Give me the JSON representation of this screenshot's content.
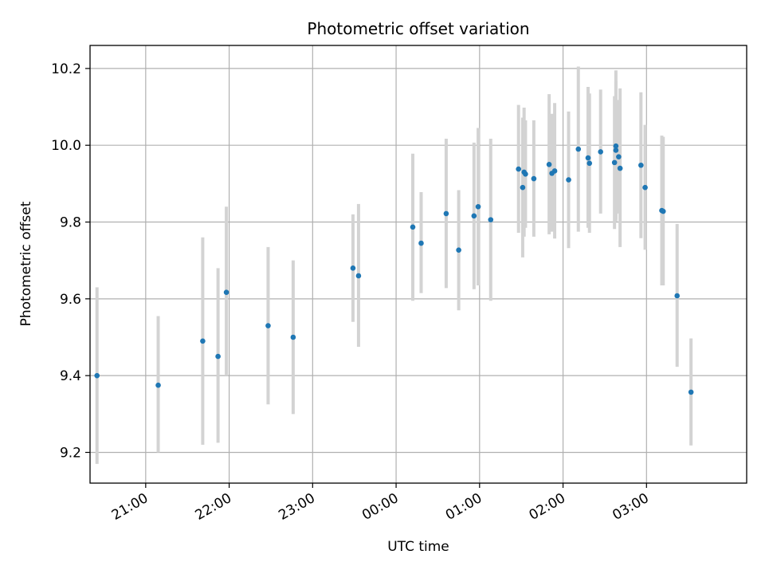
{
  "chart_data": {
    "type": "scatter",
    "title": "Photometric offset variation",
    "xlabel": "UTC time",
    "ylabel": "Photometric offset",
    "x_domain": [
      "20:20",
      "04:12"
    ],
    "ylim": [
      9.12,
      10.26
    ],
    "grid": true,
    "x_ticks": [
      "21:00",
      "22:00",
      "23:00",
      "00:00",
      "01:00",
      "02:00",
      "03:00"
    ],
    "y_ticks": [
      "9.2",
      "9.4",
      "9.6",
      "9.8",
      "10.0",
      "10.2"
    ],
    "colors": {
      "point": "#1f77b4",
      "errorbar": "#d3d3d3",
      "grid": "#b0b0b0"
    },
    "series": [
      {
        "points": [
          {
            "x": "20:25",
            "y": 9.4,
            "ylo": 9.17,
            "yhi": 9.63
          },
          {
            "x": "21:09",
            "y": 9.375,
            "ylo": 9.2,
            "yhi": 9.555
          },
          {
            "x": "21:41",
            "y": 9.49,
            "ylo": 9.22,
            "yhi": 9.76
          },
          {
            "x": "21:52",
            "y": 9.45,
            "ylo": 9.225,
            "yhi": 9.68
          },
          {
            "x": "21:58",
            "y": 9.617,
            "ylo": 9.4,
            "yhi": 9.84
          },
          {
            "x": "22:28",
            "y": 9.53,
            "ylo": 9.325,
            "yhi": 9.735
          },
          {
            "x": "22:46",
            "y": 9.5,
            "ylo": 9.3,
            "yhi": 9.7
          },
          {
            "x": "23:29",
            "y": 9.68,
            "ylo": 9.54,
            "yhi": 9.82
          },
          {
            "x": "23:33",
            "y": 9.66,
            "ylo": 9.475,
            "yhi": 9.847
          },
          {
            "x": "00:12",
            "y": 9.787,
            "ylo": 9.595,
            "yhi": 9.978
          },
          {
            "x": "00:18",
            "y": 9.745,
            "ylo": 9.615,
            "yhi": 9.878
          },
          {
            "x": "00:36",
            "y": 9.822,
            "ylo": 9.628,
            "yhi": 10.017
          },
          {
            "x": "00:45",
            "y": 9.727,
            "ylo": 9.57,
            "yhi": 9.883
          },
          {
            "x": "00:56",
            "y": 9.816,
            "ylo": 9.625,
            "yhi": 10.007
          },
          {
            "x": "00:59",
            "y": 9.84,
            "ylo": 9.635,
            "yhi": 10.045
          },
          {
            "x": "01:08",
            "y": 9.806,
            "ylo": 9.595,
            "yhi": 10.017
          },
          {
            "x": "01:28",
            "y": 9.938,
            "ylo": 9.772,
            "yhi": 10.105
          },
          {
            "x": "01:31",
            "y": 9.89,
            "ylo": 9.708,
            "yhi": 10.072
          },
          {
            "x": "01:32",
            "y": 9.93,
            "ylo": 9.762,
            "yhi": 10.098
          },
          {
            "x": "01:33",
            "y": 9.925,
            "ylo": 9.785,
            "yhi": 10.065
          },
          {
            "x": "01:39",
            "y": 9.913,
            "ylo": 9.762,
            "yhi": 10.065
          },
          {
            "x": "01:50",
            "y": 9.95,
            "ylo": 9.768,
            "yhi": 10.133
          },
          {
            "x": "01:52",
            "y": 9.927,
            "ylo": 9.775,
            "yhi": 10.082
          },
          {
            "x": "01:54",
            "y": 9.933,
            "ylo": 9.757,
            "yhi": 10.11
          },
          {
            "x": "02:04",
            "y": 9.91,
            "ylo": 9.732,
            "yhi": 10.088
          },
          {
            "x": "02:11",
            "y": 9.99,
            "ylo": 9.775,
            "yhi": 10.205
          },
          {
            "x": "02:18",
            "y": 9.967,
            "ylo": 9.785,
            "yhi": 10.152
          },
          {
            "x": "02:19",
            "y": 9.953,
            "ylo": 9.772,
            "yhi": 10.135
          },
          {
            "x": "02:27",
            "y": 9.983,
            "ylo": 9.822,
            "yhi": 10.145
          },
          {
            "x": "02:37",
            "y": 9.955,
            "ylo": 9.782,
            "yhi": 10.128
          },
          {
            "x": "02:38",
            "y": 9.998,
            "ylo": 9.802,
            "yhi": 10.195
          },
          {
            "x": "02:38",
            "y": 9.987,
            "ylo": 9.808,
            "yhi": 10.167
          },
          {
            "x": "02:40",
            "y": 9.97,
            "ylo": 9.822,
            "yhi": 10.118
          },
          {
            "x": "02:41",
            "y": 9.94,
            "ylo": 9.735,
            "yhi": 10.148
          },
          {
            "x": "02:56",
            "y": 9.948,
            "ylo": 9.758,
            "yhi": 10.138
          },
          {
            "x": "02:59",
            "y": 9.89,
            "ylo": 9.728,
            "yhi": 10.053
          },
          {
            "x": "03:11",
            "y": 9.83,
            "ylo": 9.635,
            "yhi": 10.025
          },
          {
            "x": "03:12",
            "y": 9.828,
            "ylo": 9.635,
            "yhi": 10.022
          },
          {
            "x": "03:22",
            "y": 9.608,
            "ylo": 9.423,
            "yhi": 9.795
          },
          {
            "x": "03:32",
            "y": 9.357,
            "ylo": 9.218,
            "yhi": 9.497
          }
        ]
      }
    ]
  }
}
